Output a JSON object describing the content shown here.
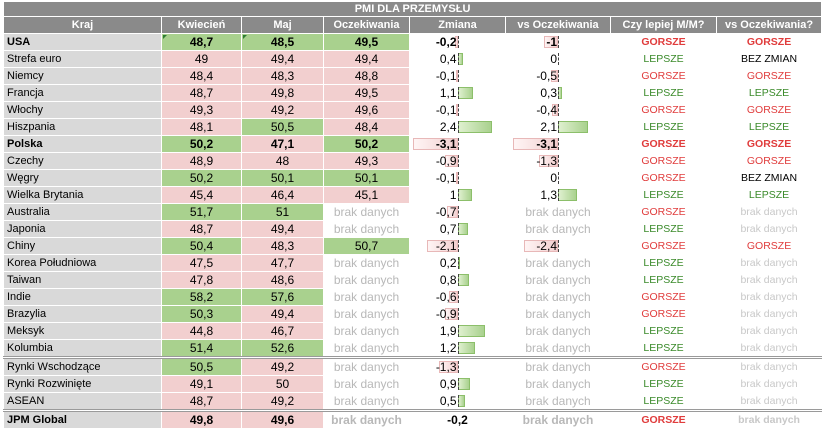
{
  "title": "PMI DLA PRZEMYSŁU",
  "headers": [
    "Kraj",
    "Kwiecień",
    "Maj",
    "Oczekiwania",
    "Zmiana",
    "vs Oczekiwania",
    "Czy lepiej M/M?",
    "vs Oczekiwania?"
  ],
  "colors": {
    "header_bg": "#8a8a8a",
    "green": "#a9d18e",
    "red": "#f2cfcf",
    "better": "#3a8a2a",
    "worse": "#e03c3c"
  },
  "rows": [
    {
      "country": "USA",
      "apr": "48,7",
      "may": "48,5",
      "exp": "49,5",
      "change": "-0,2",
      "vs": "-1",
      "mm": "GORSZE",
      "vsq": "GORSZE",
      "apr_bg": "green",
      "may_bg": "green",
      "exp_bg": "green",
      "change_val": -0.2,
      "vs_val": -1,
      "bold": true,
      "marks": true
    },
    {
      "country": "Strefa euro",
      "apr": "49",
      "may": "49,4",
      "exp": "49,4",
      "change": "0,4",
      "vs": "0",
      "mm": "LEPSZE",
      "vsq": "BEZ ZMIAN",
      "apr_bg": "red",
      "may_bg": "red",
      "exp_bg": "red",
      "change_val": 0.4,
      "vs_val": 0
    },
    {
      "country": "Niemcy",
      "apr": "48,4",
      "may": "48,3",
      "exp": "48,8",
      "change": "-0,1",
      "vs": "-0,5",
      "mm": "GORSZE",
      "vsq": "GORSZE",
      "apr_bg": "red",
      "may_bg": "red",
      "exp_bg": "red",
      "change_val": -0.1,
      "vs_val": -0.5
    },
    {
      "country": "Francja",
      "apr": "48,7",
      "may": "49,8",
      "exp": "49,5",
      "change": "1,1",
      "vs": "0,3",
      "mm": "LEPSZE",
      "vsq": "LEPSZE",
      "apr_bg": "red",
      "may_bg": "red",
      "exp_bg": "red",
      "change_val": 1.1,
      "vs_val": 0.3
    },
    {
      "country": "Włochy",
      "apr": "49,3",
      "may": "49,2",
      "exp": "49,6",
      "change": "-0,1",
      "vs": "-0,4",
      "mm": "GORSZE",
      "vsq": "GORSZE",
      "apr_bg": "red",
      "may_bg": "red",
      "exp_bg": "red",
      "change_val": -0.1,
      "vs_val": -0.4
    },
    {
      "country": "Hiszpania",
      "apr": "48,1",
      "may": "50,5",
      "exp": "48,4",
      "change": "2,4",
      "vs": "2,1",
      "mm": "LEPSZE",
      "vsq": "LEPSZE",
      "apr_bg": "red",
      "may_bg": "green",
      "exp_bg": "red",
      "change_val": 2.4,
      "vs_val": 2.1
    },
    {
      "country": "Polska",
      "apr": "50,2",
      "may": "47,1",
      "exp": "50,2",
      "change": "-3,1",
      "vs": "-3,1",
      "mm": "GORSZE",
      "vsq": "GORSZE",
      "apr_bg": "green",
      "may_bg": "red",
      "exp_bg": "green",
      "change_val": -3.1,
      "vs_val": -3.1,
      "bold": true
    },
    {
      "country": "Czechy",
      "apr": "48,9",
      "may": "48",
      "exp": "49,3",
      "change": "-0,9",
      "vs": "-1,3",
      "mm": "GORSZE",
      "vsq": "GORSZE",
      "apr_bg": "red",
      "may_bg": "red",
      "exp_bg": "red",
      "change_val": -0.9,
      "vs_val": -1.3
    },
    {
      "country": "Węgry",
      "apr": "50,2",
      "may": "50,1",
      "exp": "50,1",
      "change": "-0,1",
      "vs": "0",
      "mm": "GORSZE",
      "vsq": "BEZ ZMIAN",
      "apr_bg": "green",
      "may_bg": "green",
      "exp_bg": "green",
      "change_val": -0.1,
      "vs_val": 0
    },
    {
      "country": "Wielka Brytania",
      "apr": "45,4",
      "may": "46,4",
      "exp": "45,1",
      "change": "1",
      "vs": "1,3",
      "mm": "LEPSZE",
      "vsq": "LEPSZE",
      "apr_bg": "red",
      "may_bg": "red",
      "exp_bg": "red",
      "change_val": 1.0,
      "vs_val": 1.3
    },
    {
      "country": "Australia",
      "apr": "51,7",
      "may": "51",
      "exp": "brak danych",
      "change": "-0,7",
      "vs": "brak danych",
      "mm": "GORSZE",
      "vsq": "brak danych",
      "apr_bg": "green",
      "may_bg": "green",
      "exp_bg": "none",
      "change_val": -0.7,
      "vs_val": null
    },
    {
      "country": "Japonia",
      "apr": "48,7",
      "may": "49,4",
      "exp": "brak danych",
      "change": "0,7",
      "vs": "brak danych",
      "mm": "LEPSZE",
      "vsq": "brak danych",
      "apr_bg": "red",
      "may_bg": "red",
      "exp_bg": "none",
      "change_val": 0.7,
      "vs_val": null
    },
    {
      "country": "Chiny",
      "apr": "50,4",
      "may": "48,3",
      "exp": "50,7",
      "change": "-2,1",
      "vs": "-2,4",
      "mm": "GORSZE",
      "vsq": "GORSZE",
      "apr_bg": "green",
      "may_bg": "red",
      "exp_bg": "green",
      "change_val": -2.1,
      "vs_val": -2.4
    },
    {
      "country": "Korea Południowa",
      "apr": "47,5",
      "may": "47,7",
      "exp": "brak danych",
      "change": "0,2",
      "vs": "brak danych",
      "mm": "LEPSZE",
      "vsq": "brak danych",
      "apr_bg": "red",
      "may_bg": "red",
      "exp_bg": "none",
      "change_val": 0.2,
      "vs_val": null
    },
    {
      "country": "Taiwan",
      "apr": "47,8",
      "may": "48,6",
      "exp": "brak danych",
      "change": "0,8",
      "vs": "brak danych",
      "mm": "LEPSZE",
      "vsq": "brak danych",
      "apr_bg": "red",
      "may_bg": "red",
      "exp_bg": "none",
      "change_val": 0.8,
      "vs_val": null
    },
    {
      "country": "Indie",
      "apr": "58,2",
      "may": "57,6",
      "exp": "brak danych",
      "change": "-0,6",
      "vs": "brak danych",
      "mm": "GORSZE",
      "vsq": "brak danych",
      "apr_bg": "green",
      "may_bg": "green",
      "exp_bg": "none",
      "change_val": -0.6,
      "vs_val": null
    },
    {
      "country": "Brazylia",
      "apr": "50,3",
      "may": "49,4",
      "exp": "brak danych",
      "change": "-0,9",
      "vs": "brak danych",
      "mm": "GORSZE",
      "vsq": "brak danych",
      "apr_bg": "green",
      "may_bg": "red",
      "exp_bg": "none",
      "change_val": -0.9,
      "vs_val": null
    },
    {
      "country": "Meksyk",
      "apr": "44,8",
      "may": "46,7",
      "exp": "brak danych",
      "change": "1,9",
      "vs": "brak danych",
      "mm": "LEPSZE",
      "vsq": "brak danych",
      "apr_bg": "red",
      "may_bg": "red",
      "exp_bg": "none",
      "change_val": 1.9,
      "vs_val": null
    },
    {
      "country": "Kolumbia",
      "apr": "51,4",
      "may": "52,6",
      "exp": "brak danych",
      "change": "1,2",
      "vs": "brak danych",
      "mm": "LEPSZE",
      "vsq": "brak danych",
      "apr_bg": "green",
      "may_bg": "green",
      "exp_bg": "none",
      "change_val": 1.2,
      "vs_val": null
    },
    {
      "country": "Rynki Wschodzące",
      "apr": "50,5",
      "may": "49,2",
      "exp": "brak danych",
      "change": "-1,3",
      "vs": "brak danych",
      "mm": "GORSZE",
      "vsq": "brak danych",
      "apr_bg": "green",
      "may_bg": "red",
      "exp_bg": "none",
      "change_val": -1.3,
      "vs_val": null,
      "sep": true,
      "change_mark": true
    },
    {
      "country": "Rynki Rozwinięte",
      "apr": "49,1",
      "may": "50",
      "exp": "brak danych",
      "change": "0,9",
      "vs": "brak danych",
      "mm": "LEPSZE",
      "vsq": "brak danych",
      "apr_bg": "red",
      "may_bg": "red",
      "exp_bg": "none",
      "change_val": 0.9,
      "vs_val": null,
      "change_mark": true
    },
    {
      "country": "ASEAN",
      "apr": "48,7",
      "may": "49,2",
      "exp": "brak danych",
      "change": "0,5",
      "vs": "brak danych",
      "mm": "LEPSZE",
      "vsq": "brak danych",
      "apr_bg": "red",
      "may_bg": "red",
      "exp_bg": "none",
      "change_val": 0.5,
      "vs_val": null,
      "change_mark": true
    },
    {
      "country": "JPM Global",
      "apr": "49,8",
      "may": "49,6",
      "exp": "brak danych",
      "change": "-0,2",
      "vs": "brak danych",
      "mm": "GORSZE",
      "vsq": "brak danych",
      "apr_bg": "red",
      "may_bg": "red",
      "exp_bg": "none",
      "change_val": null,
      "vs_val": null,
      "bold": true,
      "bottom": true
    }
  ]
}
